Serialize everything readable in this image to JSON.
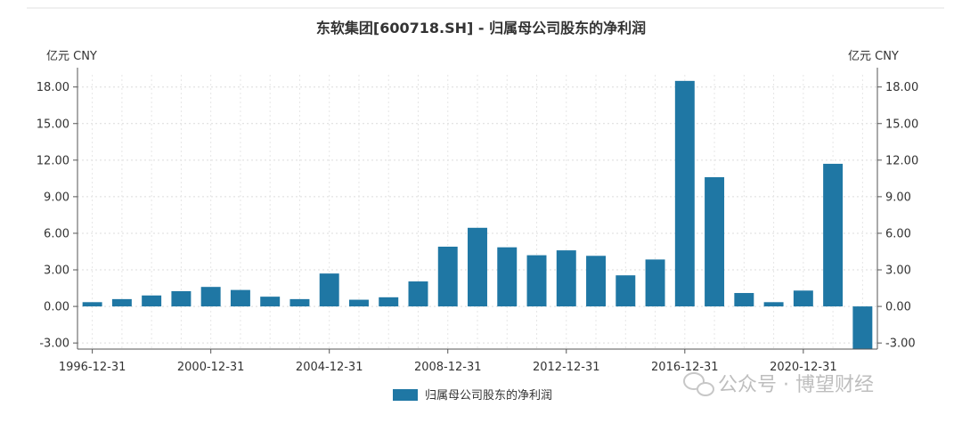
{
  "chart_data": {
    "type": "bar",
    "title": "东软集团[600718.SH] - 归属母公司股东的净利润",
    "unit_left": "亿元  CNY",
    "unit_right": "亿元  CNY",
    "categories": [
      "1996-12-31",
      "1997-12-31",
      "1998-12-31",
      "1999-12-31",
      "2000-12-31",
      "2001-12-31",
      "2002-12-31",
      "2003-12-31",
      "2004-12-31",
      "2005-12-31",
      "2006-12-31",
      "2007-12-31",
      "2008-12-31",
      "2009-12-31",
      "2010-12-31",
      "2011-12-31",
      "2012-12-31",
      "2013-12-31",
      "2014-12-31",
      "2015-12-31",
      "2016-12-31",
      "2017-12-31",
      "2018-12-31",
      "2019-12-31",
      "2020-12-31",
      "2021-12-31",
      "2022-12-31"
    ],
    "xtick_labels": [
      "1996-12-31",
      "2000-12-31",
      "2004-12-31",
      "2008-12-31",
      "2012-12-31",
      "2016-12-31",
      "2020-12-31"
    ],
    "series": [
      {
        "name": "归属母公司股东的净利润",
        "color": "#1f77a4",
        "values": [
          0.35,
          0.6,
          0.9,
          1.25,
          1.6,
          1.35,
          0.8,
          0.6,
          2.7,
          0.55,
          0.75,
          2.05,
          4.9,
          6.45,
          4.85,
          4.2,
          4.6,
          4.15,
          2.55,
          3.85,
          18.5,
          10.6,
          1.1,
          0.35,
          1.3,
          11.7,
          -3.5
        ]
      }
    ],
    "yticks": [
      -3,
      0,
      3,
      6,
      9,
      12,
      15,
      18
    ],
    "ytick_labels": [
      "-3.00",
      "0.00",
      "3.00",
      "6.00",
      "9.00",
      "12.00",
      "15.00",
      "18.00"
    ],
    "ylim": [
      -3.5,
      19
    ],
    "grid": true,
    "legend_position": "bottom",
    "watermark": "公众号 · 博望财经"
  }
}
